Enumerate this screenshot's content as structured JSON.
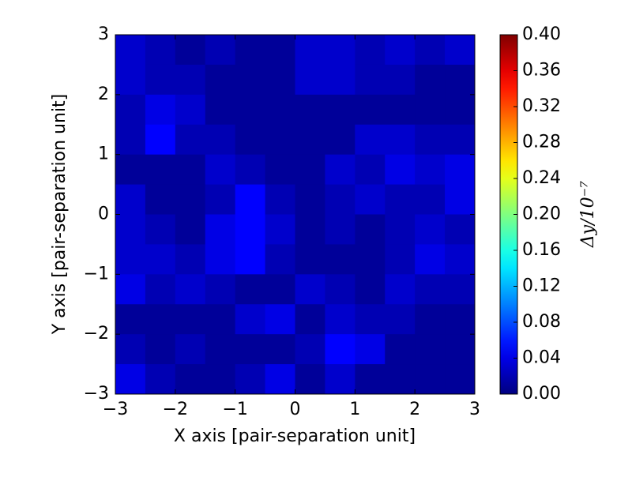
{
  "chart_data": {
    "type": "heatmap",
    "xlabel": "X axis [pair-separation unit]",
    "ylabel": "Y axis [pair-separation unit]",
    "colorbar_label": "Δy/10⁻⁷",
    "colormap": "jet",
    "xlim": [
      -3,
      3
    ],
    "ylim": [
      -3,
      3
    ],
    "xticks": [
      {
        "value": -3,
        "label": "−3"
      },
      {
        "value": -2,
        "label": "−2"
      },
      {
        "value": -1,
        "label": "−1"
      },
      0,
      1,
      2,
      3
    ],
    "yticks": [
      {
        "value": -3,
        "label": "−3"
      },
      {
        "value": -2,
        "label": "−2"
      },
      {
        "value": -1,
        "label": "−1"
      },
      0,
      1,
      2,
      3
    ],
    "clim": [
      0,
      0.4
    ],
    "cticks": [
      {
        "value": 0,
        "label": "0.00"
      },
      0.04,
      0.08,
      0.12,
      0.16,
      {
        "value": 0.2,
        "label": "0.20"
      },
      0.24,
      0.28,
      0.32,
      0.36,
      {
        "value": 0.4,
        "label": "0.40"
      }
    ],
    "z": [
      [
        0.03,
        0.02,
        0.01,
        0.02,
        0.01,
        0.01,
        0.03,
        0.03,
        0.02,
        0.03,
        0.02,
        0.03
      ],
      [
        0.03,
        0.02,
        0.02,
        0.01,
        0.01,
        0.01,
        0.03,
        0.03,
        0.02,
        0.02,
        0.01,
        0.01
      ],
      [
        0.02,
        0.04,
        0.03,
        0.01,
        0.01,
        0.01,
        0.01,
        0.01,
        0.01,
        0.01,
        0.01,
        0.01
      ],
      [
        0.02,
        0.05,
        0.02,
        0.02,
        0.01,
        0.01,
        0.01,
        0.01,
        0.03,
        0.03,
        0.02,
        0.02
      ],
      [
        0.01,
        0.01,
        0.01,
        0.03,
        0.02,
        0.01,
        0.01,
        0.03,
        0.02,
        0.04,
        0.03,
        0.04
      ],
      [
        0.03,
        0.01,
        0.01,
        0.02,
        0.05,
        0.02,
        0.01,
        0.02,
        0.03,
        0.02,
        0.02,
        0.04
      ],
      [
        0.03,
        0.02,
        0.01,
        0.04,
        0.05,
        0.03,
        0.01,
        0.02,
        0.01,
        0.02,
        0.03,
        0.02
      ],
      [
        0.03,
        0.03,
        0.02,
        0.04,
        0.05,
        0.02,
        0.01,
        0.01,
        0.01,
        0.02,
        0.04,
        0.03
      ],
      [
        0.04,
        0.02,
        0.03,
        0.02,
        0.01,
        0.01,
        0.03,
        0.02,
        0.01,
        0.03,
        0.02,
        0.02
      ],
      [
        0.01,
        0.01,
        0.01,
        0.01,
        0.03,
        0.04,
        0.01,
        0.03,
        0.02,
        0.02,
        0.01,
        0.01
      ],
      [
        0.02,
        0.01,
        0.02,
        0.01,
        0.01,
        0.01,
        0.02,
        0.05,
        0.04,
        0.01,
        0.01,
        0.01
      ],
      [
        0.04,
        0.02,
        0.01,
        0.01,
        0.02,
        0.04,
        0.01,
        0.03,
        0.01,
        0.01,
        0.01,
        0.01
      ]
    ]
  }
}
